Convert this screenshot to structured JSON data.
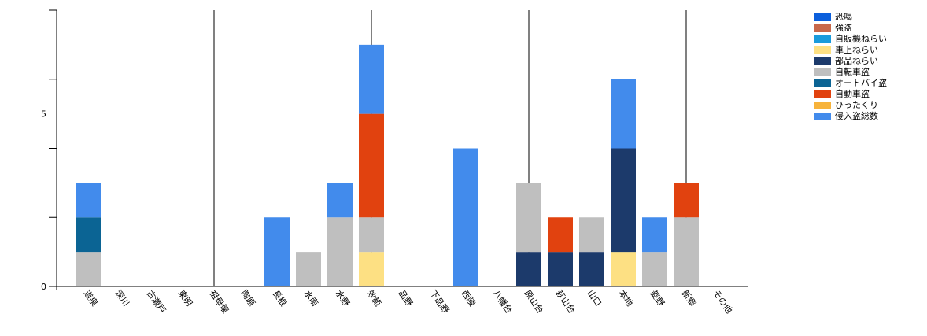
{
  "chart_data": {
    "type": "bar",
    "stacked": true,
    "categories": [
      "道泉",
      "深川",
      "古瀬戸",
      "東明",
      "祖母懐",
      "陶原",
      "長根",
      "水南",
      "水野",
      "效範",
      "品野",
      "下品野",
      "西陵",
      "八幡台",
      "原山台",
      "萩山台",
      "山口",
      "本地",
      "菱野",
      "新郷",
      "その他"
    ],
    "ylim": [
      0,
      8
    ],
    "yticks": [
      0,
      5
    ],
    "grid": false,
    "legend_position": "top-right",
    "series": [
      {
        "name": "恐喝",
        "color": "#0b5fdc",
        "values": [
          0,
          0,
          0,
          0,
          0,
          0,
          0,
          0,
          0,
          0,
          0,
          0,
          0,
          0,
          0,
          0,
          0,
          0,
          0,
          0,
          0
        ]
      },
      {
        "name": "強盗",
        "color": "#c8684a",
        "values": [
          0,
          0,
          0,
          0,
          0,
          0,
          0,
          0,
          0,
          0,
          0,
          0,
          0,
          0,
          0,
          0,
          0,
          0,
          0,
          0,
          0
        ]
      },
      {
        "name": "自販機ねらい",
        "color": "#1a9bdc",
        "values": [
          0,
          0,
          0,
          0,
          0,
          0,
          0,
          0,
          0,
          0,
          0,
          0,
          0,
          0,
          0,
          0,
          0,
          0,
          0,
          0,
          0
        ]
      },
      {
        "name": "車上ねらい",
        "color": "#fde083",
        "values": [
          0,
          0,
          0,
          0,
          0,
          0,
          0,
          0,
          0,
          1,
          0,
          0,
          0,
          0,
          0,
          0,
          0,
          1,
          0,
          0,
          0
        ]
      },
      {
        "name": "部品ねらい",
        "color": "#1c3a6b",
        "values": [
          0,
          0,
          0,
          0,
          0,
          0,
          0,
          0,
          0,
          0,
          0,
          0,
          0,
          0,
          1,
          1,
          1,
          3,
          0,
          0,
          0
        ]
      },
      {
        "name": "自転車盗",
        "color": "#bfbfbf",
        "values": [
          1,
          0,
          0,
          0,
          0,
          0,
          0,
          1,
          2,
          1,
          0,
          0,
          0,
          0,
          2,
          0,
          1,
          0,
          1,
          2,
          0
        ]
      },
      {
        "name": "オートバイ盗",
        "color": "#0b6494",
        "values": [
          1,
          0,
          0,
          0,
          0,
          0,
          0,
          0,
          0,
          0,
          0,
          0,
          0,
          0,
          0,
          0,
          0,
          0,
          0,
          0,
          0
        ]
      },
      {
        "name": "自動車盗",
        "color": "#e1420f",
        "values": [
          0,
          0,
          0,
          0,
          0,
          0,
          0,
          0,
          0,
          3,
          0,
          0,
          0,
          0,
          0,
          1,
          0,
          0,
          0,
          1,
          0
        ]
      },
      {
        "name": "ひったくり",
        "color": "#f7b33b",
        "values": [
          0,
          0,
          0,
          0,
          0,
          0,
          0,
          0,
          0,
          0,
          0,
          0,
          0,
          0,
          0,
          0,
          0,
          0,
          0,
          0,
          0
        ]
      },
      {
        "name": "侵入盗総数",
        "color": "#428bec",
        "values": [
          1,
          0,
          0,
          0,
          0,
          0,
          2,
          0,
          1,
          2,
          0,
          0,
          4,
          0,
          0,
          0,
          0,
          2,
          1,
          0,
          0
        ]
      }
    ]
  }
}
